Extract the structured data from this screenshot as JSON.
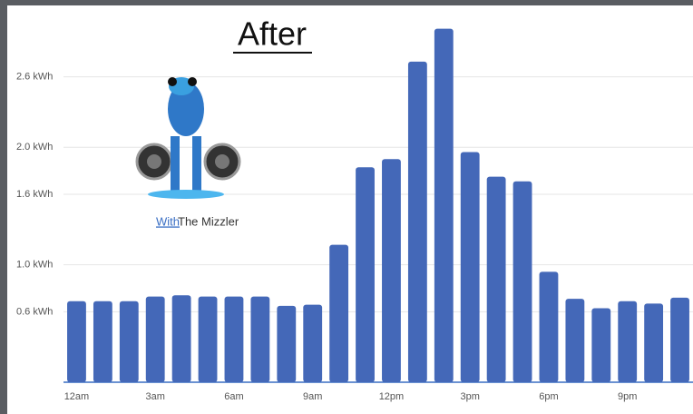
{
  "chart_data": {
    "type": "bar",
    "title": "After",
    "annotations": [
      "With",
      "The Mizzler"
    ],
    "categories": [
      "12am",
      null,
      null,
      "3am",
      null,
      null,
      "6am",
      null,
      null,
      "9am",
      null,
      null,
      "12pm",
      null,
      null,
      "3pm",
      null,
      null,
      "6pm",
      null,
      null,
      "9pm",
      null,
      null
    ],
    "values": [
      0.69,
      0.69,
      0.69,
      0.73,
      0.74,
      0.73,
      0.73,
      0.73,
      0.65,
      0.66,
      1.17,
      1.83,
      1.9,
      2.73,
      3.01,
      1.96,
      1.75,
      1.71,
      0.94,
      0.71,
      0.63,
      0.69,
      0.67,
      0.72
    ],
    "color": "#4468b8",
    "ylim": [
      0,
      3.1
    ],
    "yticks": [
      {
        "value": 0.6,
        "label": "0.6 kWh"
      },
      {
        "value": 1.0,
        "label": "1.0 kWh"
      },
      {
        "value": 1.6,
        "label": "1.6 kWh"
      },
      {
        "value": 2.0,
        "label": "2.0 kWh"
      },
      {
        "value": 2.6,
        "label": "2.6 kWh"
      }
    ],
    "grid": true
  }
}
